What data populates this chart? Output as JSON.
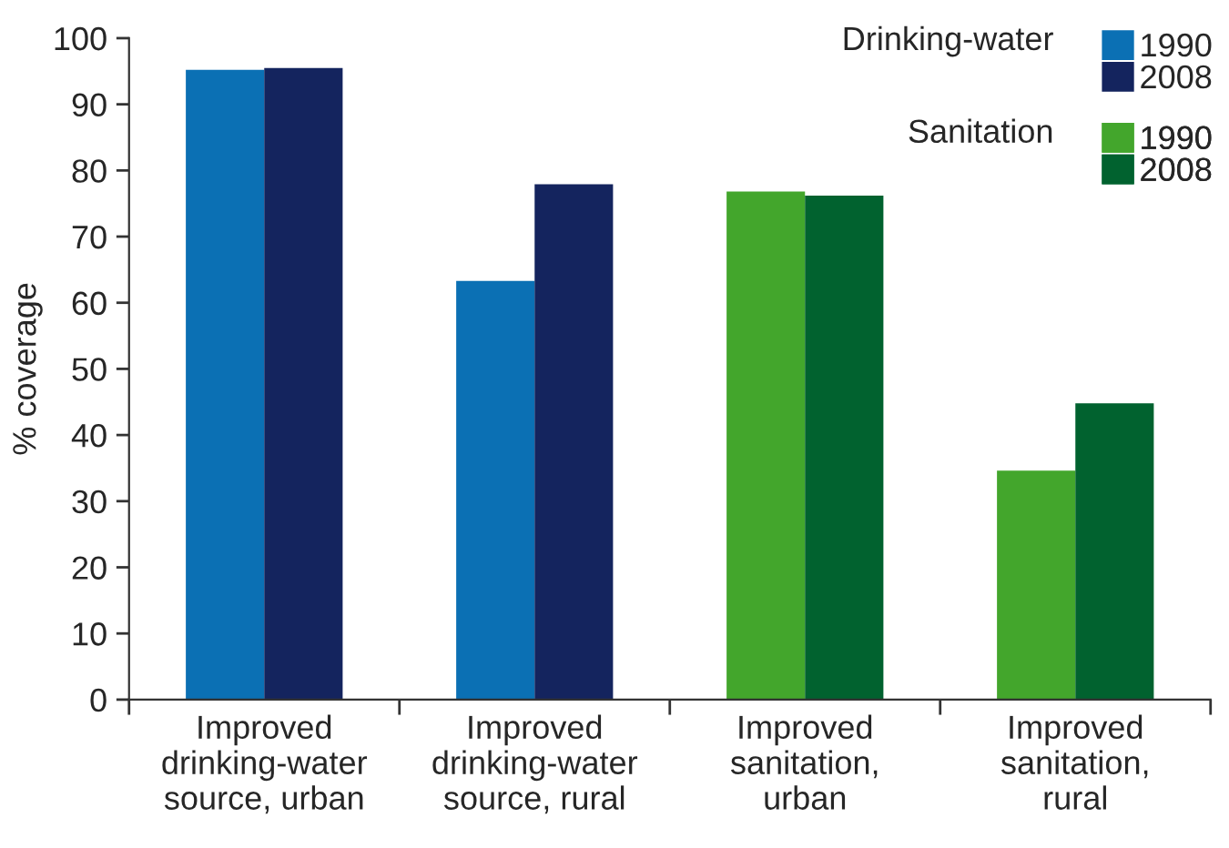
{
  "chart_data": {
    "type": "bar",
    "ylabel": "% coverage",
    "categories": [
      "Improved\ndrinking-water\nsource, urban",
      "Improved\ndrinking-water\nsource, rural",
      "Improved\nsanitation,\nurban",
      "Improved\nsanitation,\nrural"
    ],
    "series": [
      {
        "name": "1990",
        "color": "#0b70b4",
        "values": [
          95.2,
          63.3,
          null,
          null
        ]
      },
      {
        "name": "2008",
        "color": "#14245e",
        "values": [
          95.5,
          77.9,
          null,
          null
        ]
      },
      {
        "name": "1990",
        "color": "#43a62c",
        "values": [
          null,
          null,
          76.8,
          34.6
        ]
      },
      {
        "name": "2008",
        "color": "#01622f",
        "values": [
          null,
          null,
          76.2,
          44.8
        ]
      }
    ],
    "annotations": [
      "Drinking-water",
      "Sanitation"
    ],
    "ylim": [
      0,
      100
    ],
    "yticks": [
      0,
      10,
      20,
      30,
      40,
      50,
      60,
      70,
      80,
      90,
      100
    ],
    "grid": false,
    "legend": "top right"
  }
}
